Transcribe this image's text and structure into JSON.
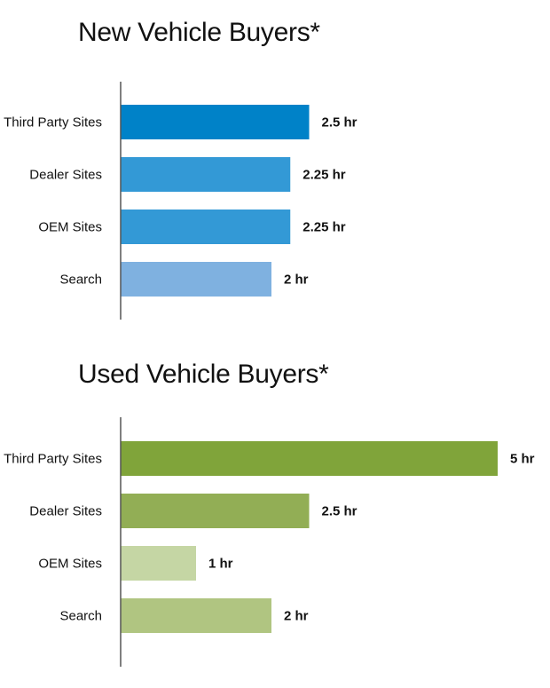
{
  "chart_data": [
    {
      "type": "bar",
      "orientation": "horizontal",
      "title": "New Vehicle Buyers*",
      "categories": [
        "Third Party Sites",
        "Dealer Sites",
        "OEM Sites",
        "Search"
      ],
      "values": [
        2.5,
        2.25,
        2.25,
        2
      ],
      "value_labels": [
        "2.5 hr",
        "2.25 hr",
        "2.25 hr",
        "2 hr"
      ],
      "unit": "hr",
      "colors": [
        "#0082c8",
        "#3399d6",
        "#3399d6",
        "#7fb1e0"
      ],
      "xlim": [
        0,
        5
      ],
      "grid": false,
      "legend": "none"
    },
    {
      "type": "bar",
      "orientation": "horizontal",
      "title": "Used Vehicle Buyers*",
      "categories": [
        "Third Party Sites",
        "Dealer Sites",
        "OEM Sites",
        "Search"
      ],
      "values": [
        5,
        2.5,
        1,
        2
      ],
      "value_labels": [
        "5 hr",
        "2.5 hr",
        "1 hr",
        "2 hr"
      ],
      "unit": "hr",
      "colors": [
        "#80a43a",
        "#92ae55",
        "#c5d6a4",
        "#b0c581"
      ],
      "xlim": [
        0,
        5
      ],
      "grid": false,
      "legend": "none"
    }
  ]
}
